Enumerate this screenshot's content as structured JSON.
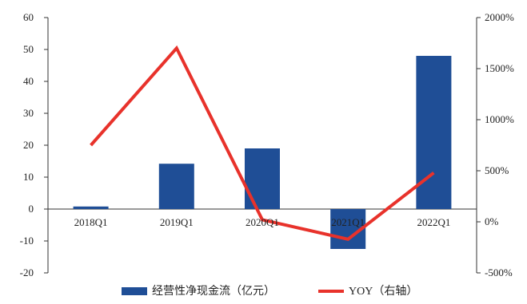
{
  "chart_data": {
    "type": "bar",
    "categories": [
      "2018Q1",
      "2019Q1",
      "2020Q1",
      "2021Q1",
      "2022Q1"
    ],
    "series": [
      {
        "name": "经营性净现金流（亿元）",
        "kind": "bar",
        "axis": "left",
        "color": "#1f4e96",
        "values": [
          0.8,
          14.2,
          19.0,
          -12.5,
          48.0
        ]
      },
      {
        "name": "YOY（右轴）",
        "kind": "line",
        "axis": "right",
        "color": "#e8322b",
        "values": [
          750,
          1700,
          20,
          -170,
          480
        ]
      }
    ],
    "y_left": {
      "min": -20,
      "max": 60,
      "ticks": [
        60,
        50,
        40,
        30,
        20,
        10,
        0,
        -10,
        -20
      ],
      "tick_labels": [
        "60",
        "50",
        "40",
        "30",
        "20",
        "10",
        "0",
        "-10",
        "-20"
      ]
    },
    "y_right": {
      "min": -500,
      "max": 2000,
      "ticks": [
        2000,
        1500,
        1000,
        500,
        0,
        -500
      ],
      "tick_labels": [
        "2000%",
        "1500%",
        "1000%",
        "500%",
        "0%",
        "-500%"
      ]
    },
    "grid": false,
    "legend_position": "bottom"
  }
}
